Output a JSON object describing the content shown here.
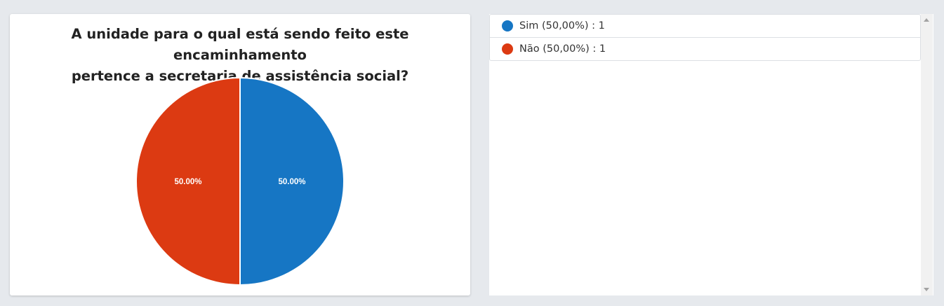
{
  "chart_data": {
    "type": "pie",
    "title_lines": [
      "A unidade para o qual está sendo feito este encaminhamento",
      "pertence a secretaria de assistência social?"
    ],
    "categories": [
      "Sim",
      "Não"
    ],
    "values": [
      1,
      1
    ],
    "slice_labels": [
      "50.00%",
      "50.00%"
    ],
    "colors": [
      "#1676c4",
      "#dc3a12"
    ]
  },
  "legend": {
    "items": [
      {
        "label": "Sim (50,00%) : 1",
        "color": "#1676c4"
      },
      {
        "label": "Não (50,00%) : 1",
        "color": "#dc3a12"
      }
    ]
  }
}
